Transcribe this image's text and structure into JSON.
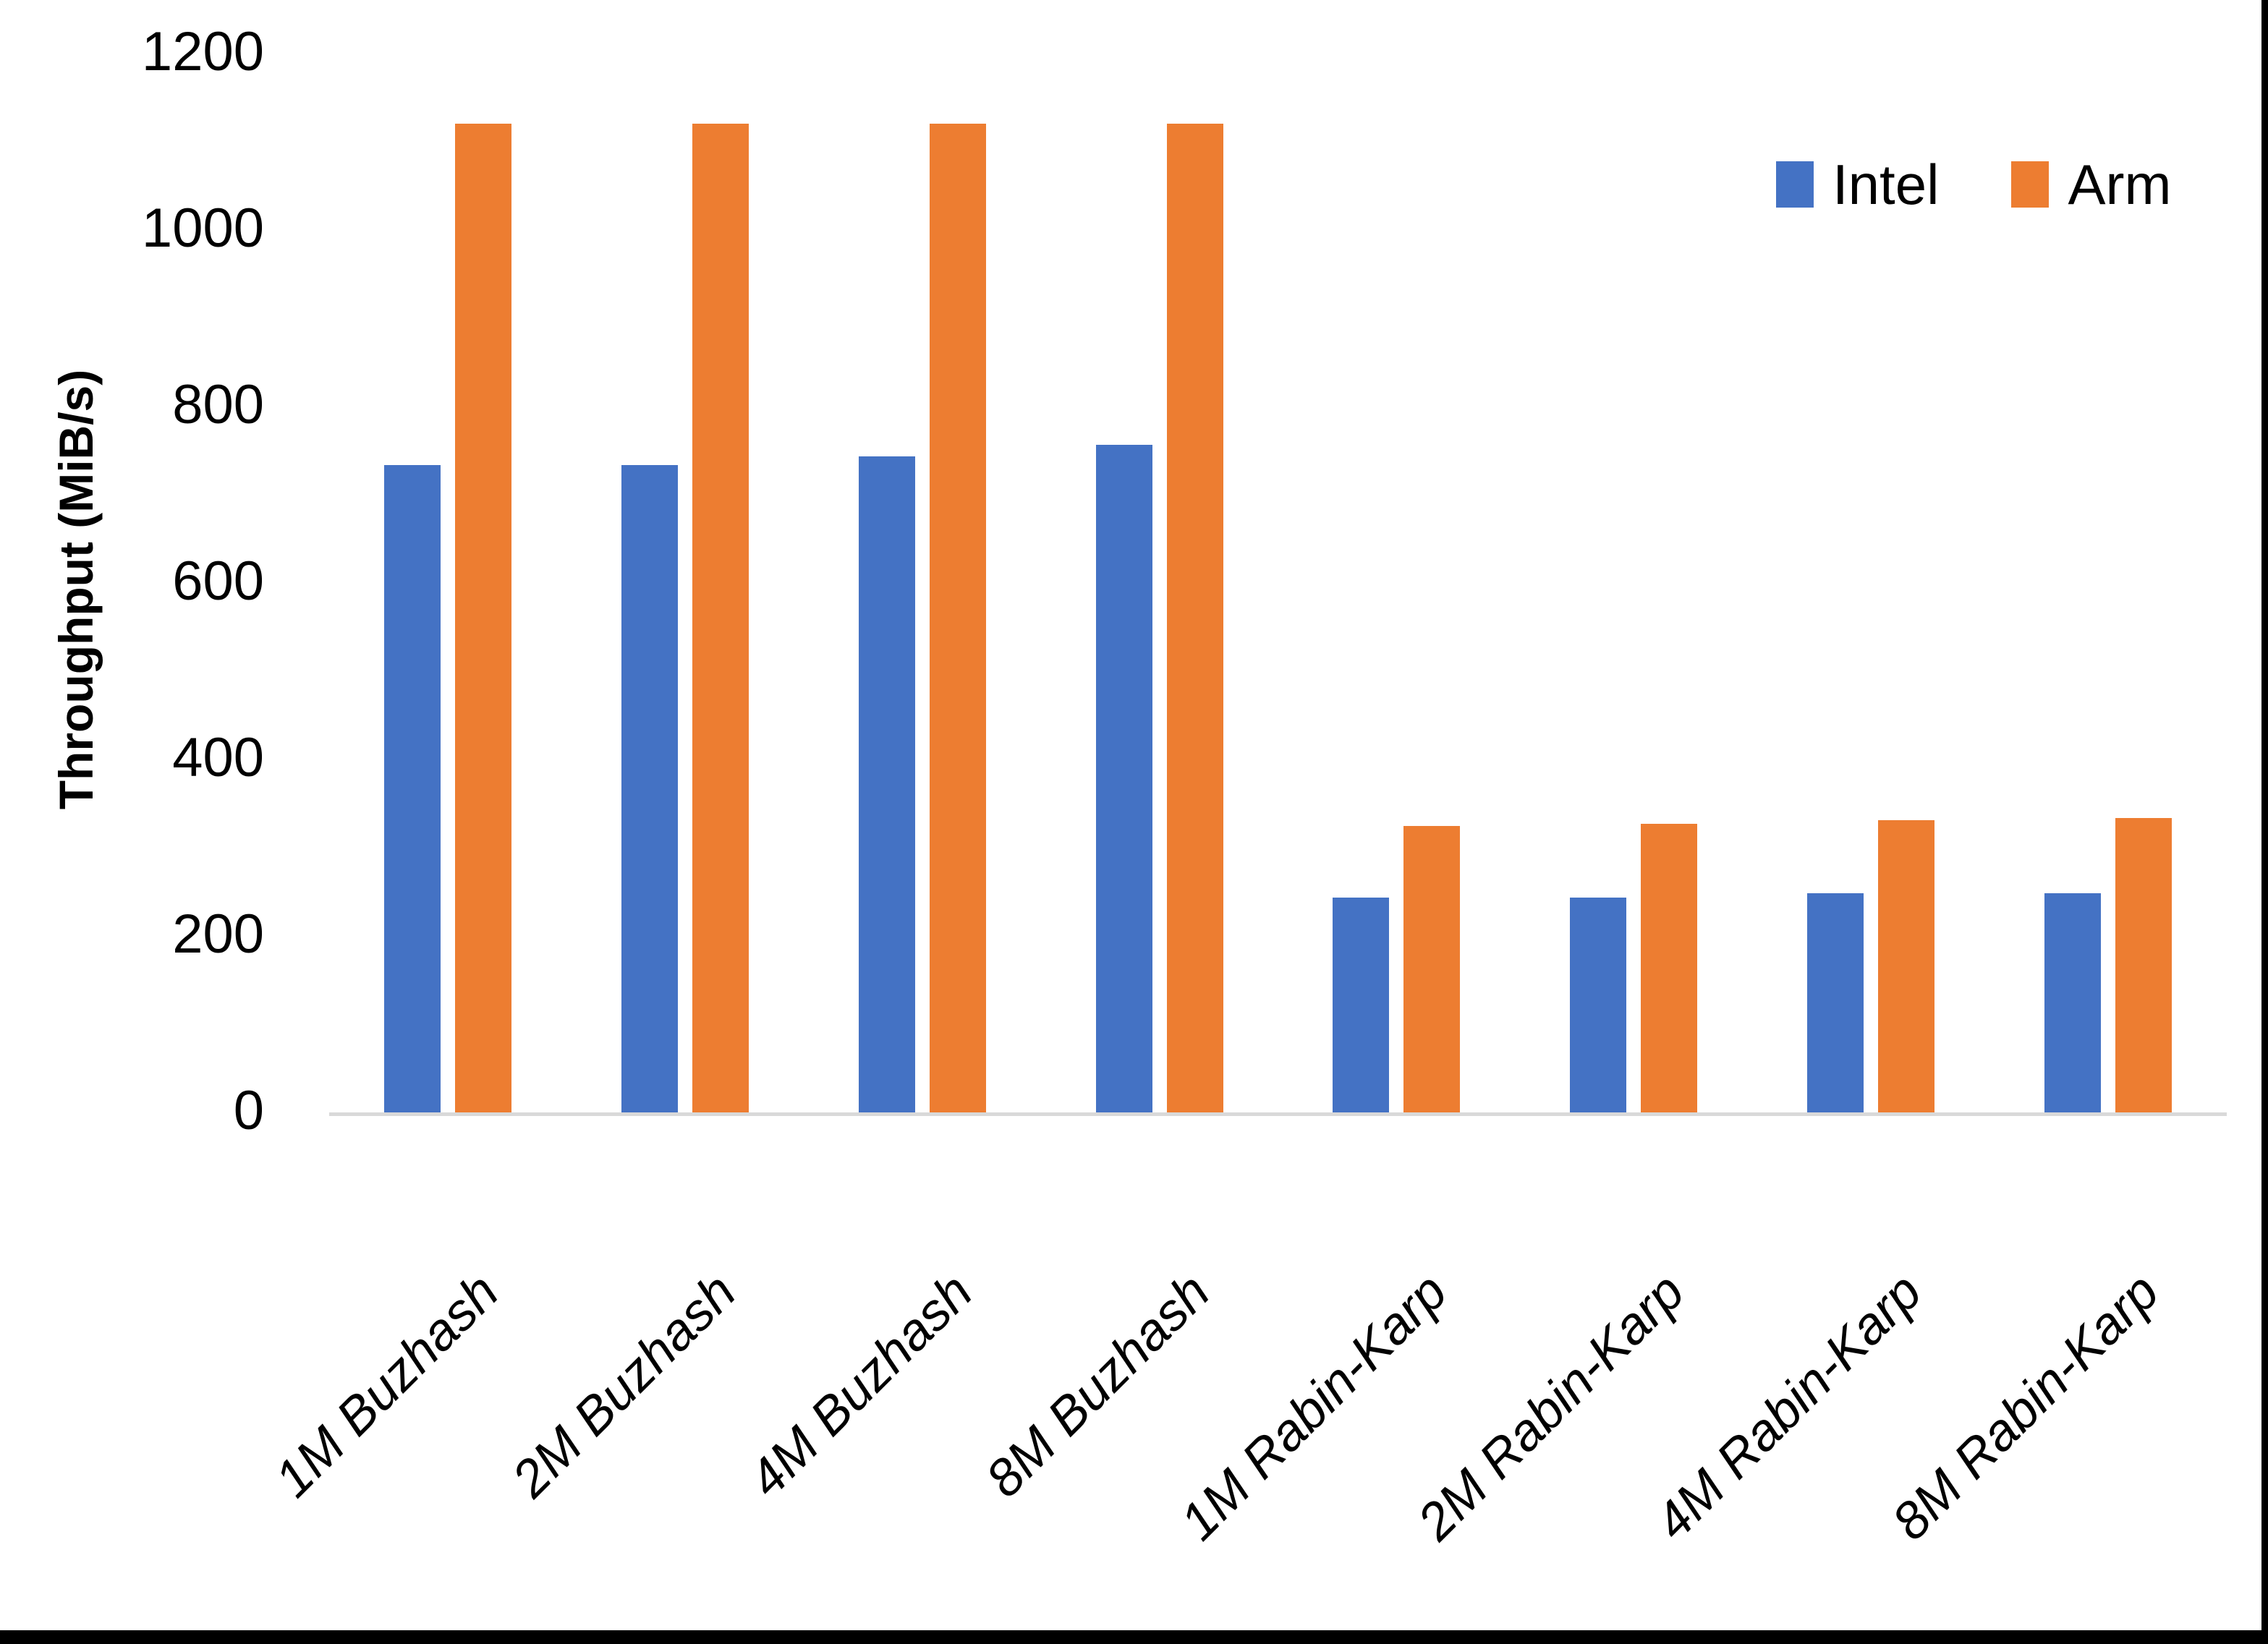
{
  "chart_data": {
    "type": "bar",
    "title": "",
    "xlabel": "",
    "ylabel": "Throughput (MiB/s)",
    "ylim": [
      0,
      1200
    ],
    "yticks": [
      0,
      200,
      400,
      600,
      800,
      1000,
      1200
    ],
    "grid": false,
    "legend_position": "top-right",
    "categories": [
      "1M Buzhash",
      "2M Buzhash",
      "4M Buzhash",
      "8M Buzhash",
      "1M Rabin-Karp",
      "2M Rabin-Karp",
      "4M Rabin-Karp",
      "8M Rabin-Karp"
    ],
    "series": [
      {
        "name": "Intel",
        "color": "#4472C4",
        "values": [
          735,
          735,
          745,
          758,
          245,
          245,
          250,
          250
        ]
      },
      {
        "name": "Arm",
        "color": "#ED7D31",
        "values": [
          1122,
          1122,
          1122,
          1122,
          326,
          329,
          333,
          335
        ]
      }
    ]
  },
  "colors": {
    "background": "#FFFFFF",
    "text": "#000000",
    "axis_line": "#D9D9D9",
    "border": "#000000"
  }
}
